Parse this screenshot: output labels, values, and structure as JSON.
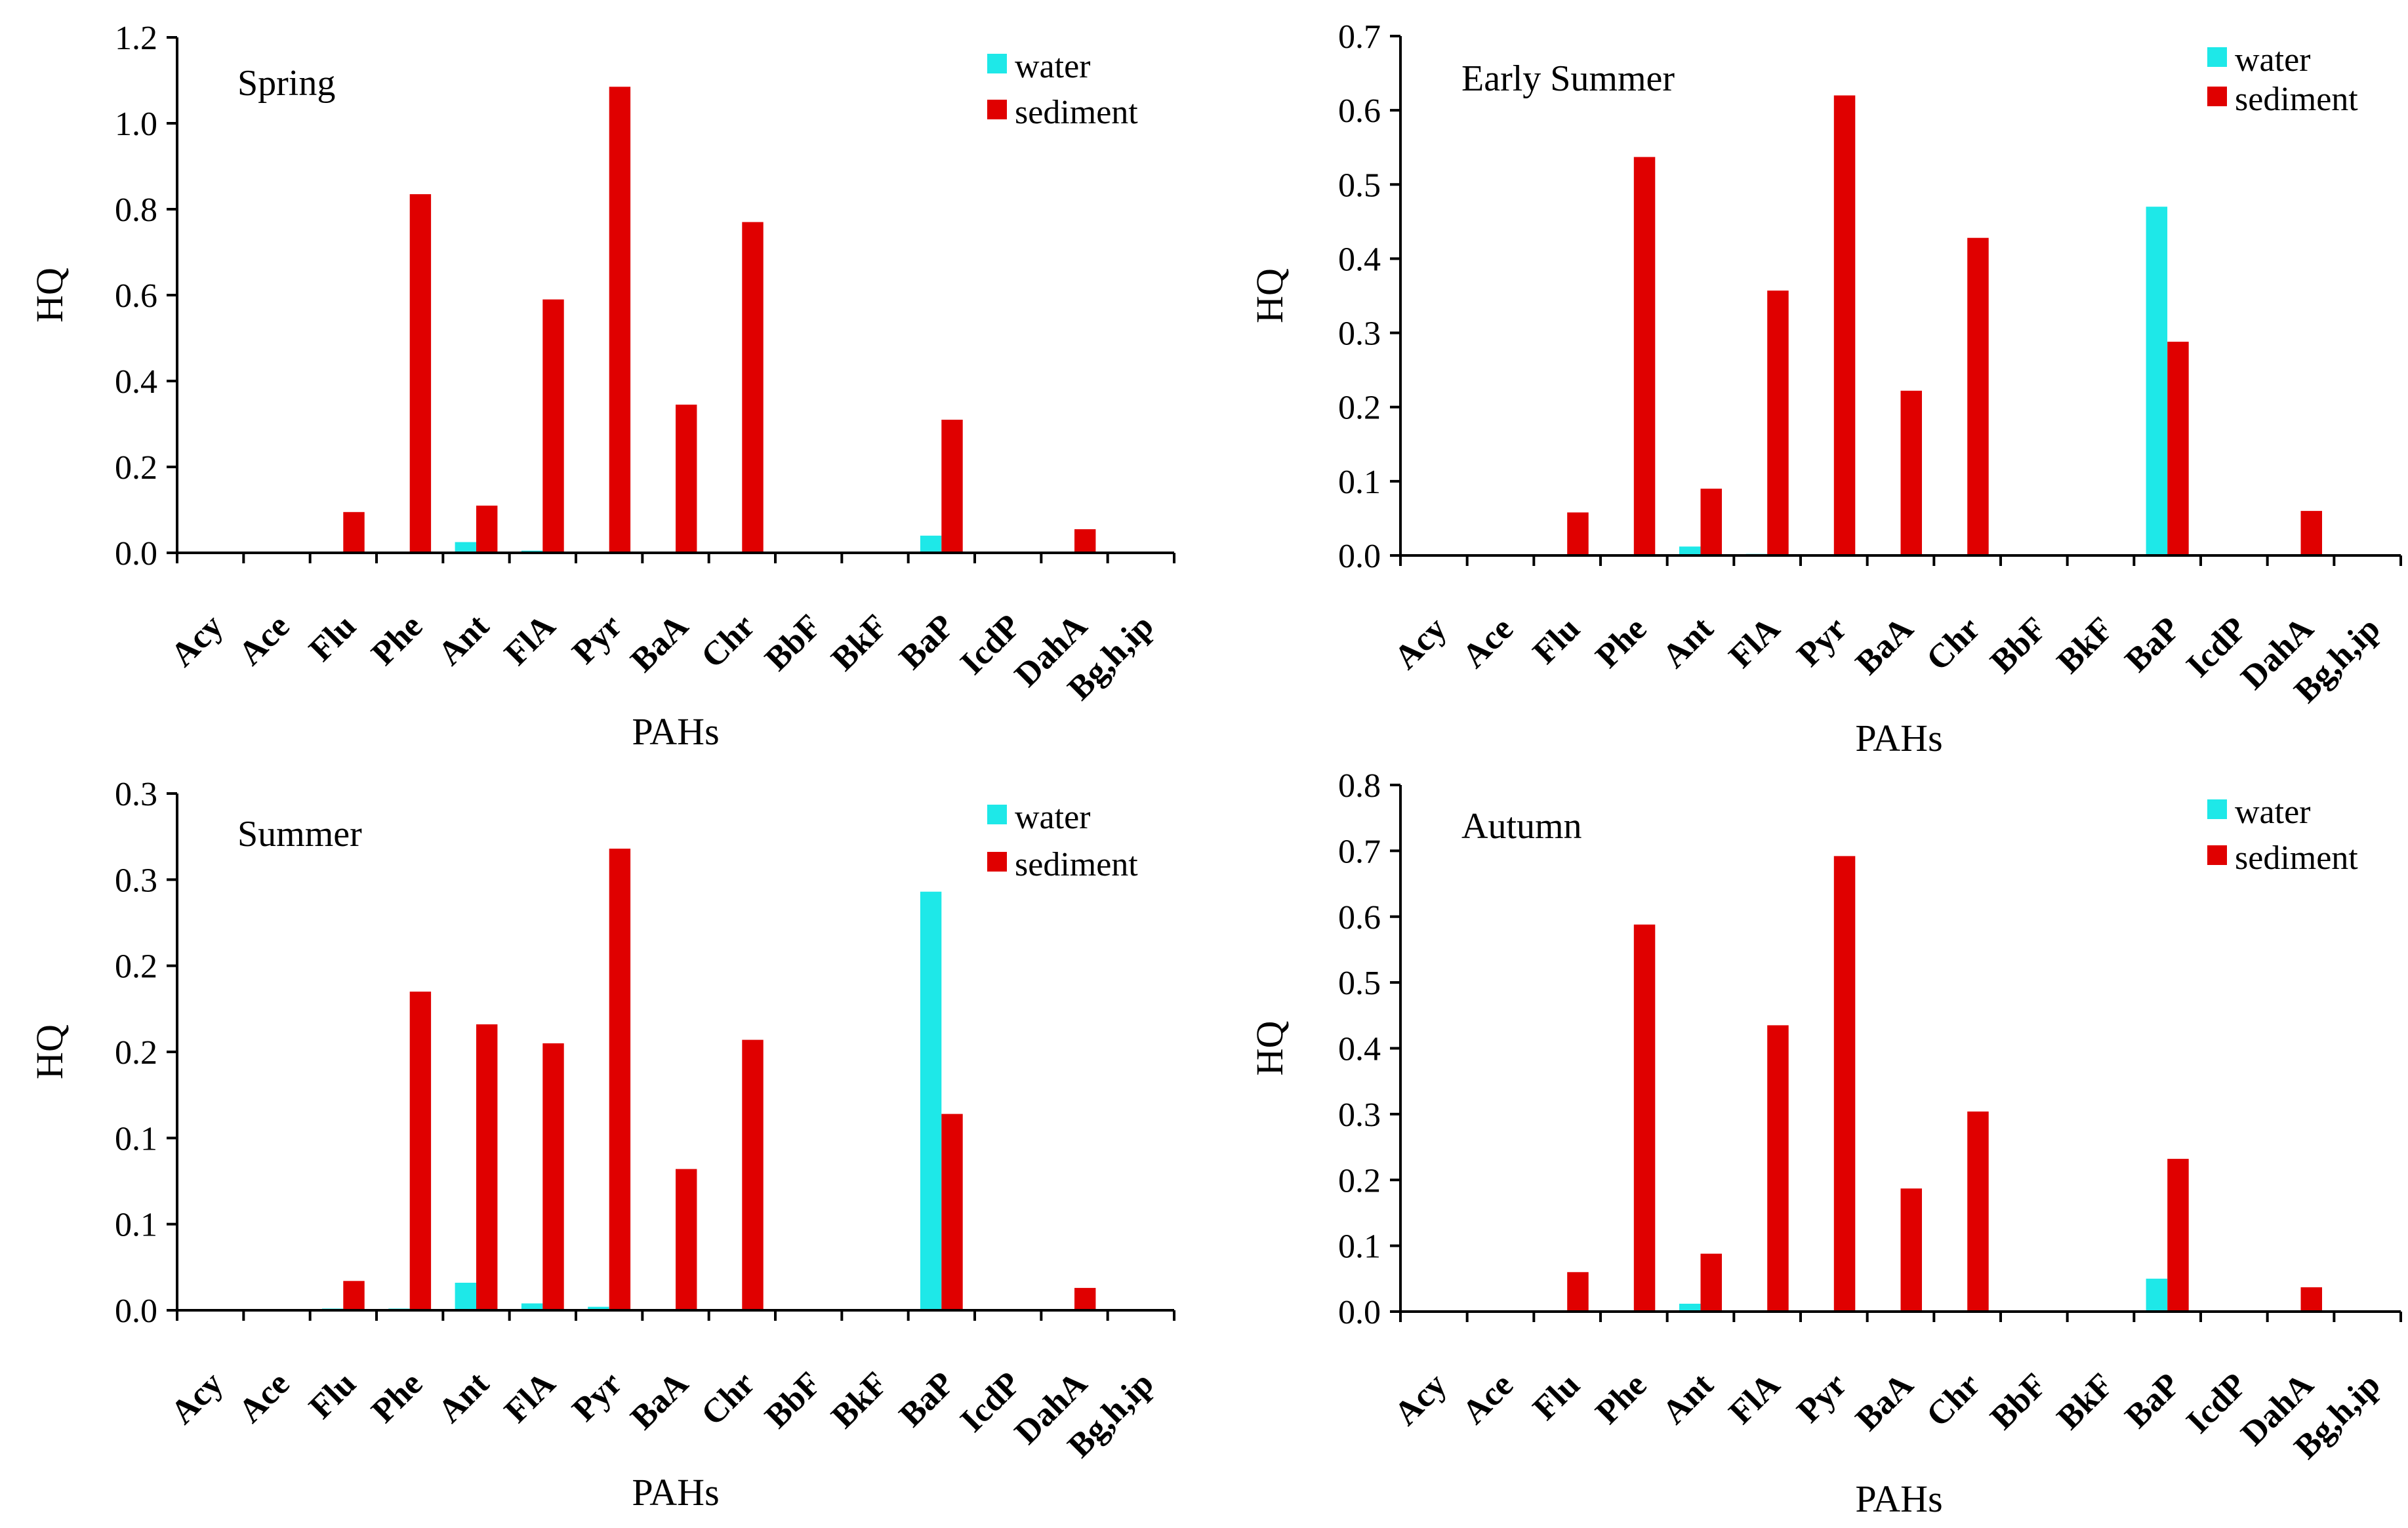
{
  "colors": {
    "water": "#1ee8e8",
    "sediment": "#e00000",
    "axis": "#000000",
    "background": "#ffffff"
  },
  "chart_data": [
    {
      "type": "bar",
      "title": "Spring",
      "xlabel": "PAHs",
      "ylabel": "HQ",
      "ylim": [
        0,
        1.2
      ],
      "yticks": [
        "0.0",
        "0.2",
        "0.4",
        "0.6",
        "0.8",
        "1.0",
        "1.2"
      ],
      "grid": false,
      "legend_position": "top-right",
      "categories": [
        "Acy",
        "Ace",
        "Flu",
        "Phe",
        "Ant",
        "FlA",
        "Pyr",
        "BaA",
        "Chr",
        "BbF",
        "BkF",
        "BaP",
        "IcdP",
        "DahA",
        "Bg,h,ip"
      ],
      "series": [
        {
          "name": "water",
          "values": [
            0,
            0,
            0.002,
            0.001,
            0.025,
            0.005,
            0.002,
            0,
            0,
            0,
            0,
            0.04,
            0,
            0,
            0
          ]
        },
        {
          "name": "sediment",
          "values": [
            0,
            0,
            0.095,
            0.835,
            0.11,
            0.59,
            1.085,
            0.345,
            0.77,
            0,
            0,
            0.31,
            0,
            0.055,
            0
          ]
        }
      ]
    },
    {
      "type": "bar",
      "title": "Early Summer",
      "xlabel": "PAHs",
      "ylabel": "HQ",
      "ylim": [
        0,
        0.7
      ],
      "yticks": [
        "0.0",
        "0.1",
        "0.2",
        "0.3",
        "0.4",
        "0.5",
        "0.6",
        "0.7"
      ],
      "grid": false,
      "legend_position": "top-right",
      "categories": [
        "Acy",
        "Ace",
        "Flu",
        "Phe",
        "Ant",
        "FlA",
        "Pyr",
        "BaA",
        "Chr",
        "BbF",
        "BkF",
        "BaP",
        "IcdP",
        "DahA",
        "Bg,h,ip"
      ],
      "series": [
        {
          "name": "water",
          "values": [
            0,
            0,
            0.001,
            0.001,
            0.012,
            0.002,
            0.001,
            0,
            0,
            0,
            0,
            0.47,
            0,
            0,
            0
          ]
        },
        {
          "name": "sediment",
          "values": [
            0,
            0,
            0.058,
            0.537,
            0.09,
            0.357,
            0.62,
            0.222,
            0.428,
            0,
            0,
            0.288,
            0,
            0.06,
            0
          ]
        }
      ]
    },
    {
      "type": "bar",
      "title": "Summer",
      "xlabel": "PAHs",
      "ylabel": "HQ",
      "ylim": [
        0,
        0.3
      ],
      "yticks": [
        "0.0",
        "0.1",
        "0.1",
        "0.2",
        "0.2",
        "0.3",
        "0.3"
      ],
      "grid": false,
      "legend_position": "top-right",
      "categories": [
        "Acy",
        "Ace",
        "Flu",
        "Phe",
        "Ant",
        "FlA",
        "Pyr",
        "BaA",
        "Chr",
        "BbF",
        "BkF",
        "BaP",
        "IcdP",
        "DahA",
        "Bg,h,ip"
      ],
      "series": [
        {
          "name": "water",
          "values": [
            0,
            0,
            0.001,
            0.001,
            0.016,
            0.004,
            0.002,
            0,
            0,
            0,
            0,
            0.243,
            0,
            0,
            0
          ]
        },
        {
          "name": "sediment",
          "values": [
            0,
            0,
            0.017,
            0.185,
            0.166,
            0.155,
            0.268,
            0.082,
            0.157,
            0,
            0,
            0.114,
            0,
            0.013,
            0
          ]
        }
      ]
    },
    {
      "type": "bar",
      "title": "Autumn",
      "xlabel": "PAHs",
      "ylabel": "HQ",
      "ylim": [
        0,
        0.8
      ],
      "yticks": [
        "0.0",
        "0.1",
        "0.2",
        "0.3",
        "0.4",
        "0.5",
        "0.6",
        "0.7",
        "0.8"
      ],
      "grid": false,
      "legend_position": "top-right",
      "categories": [
        "Acy",
        "Ace",
        "Flu",
        "Phe",
        "Ant",
        "FlA",
        "Pyr",
        "BaA",
        "Chr",
        "BbF",
        "BkF",
        "BaP",
        "IcdP",
        "DahA",
        "Bg,h,ip"
      ],
      "series": [
        {
          "name": "water",
          "values": [
            0,
            0,
            0.001,
            0.001,
            0.012,
            0.002,
            0.001,
            0,
            0,
            0,
            0,
            0.05,
            0,
            0,
            0
          ]
        },
        {
          "name": "sediment",
          "values": [
            0,
            0,
            0.06,
            0.588,
            0.088,
            0.435,
            0.692,
            0.187,
            0.304,
            0,
            0,
            0.232,
            0,
            0.037,
            0
          ]
        }
      ]
    }
  ]
}
